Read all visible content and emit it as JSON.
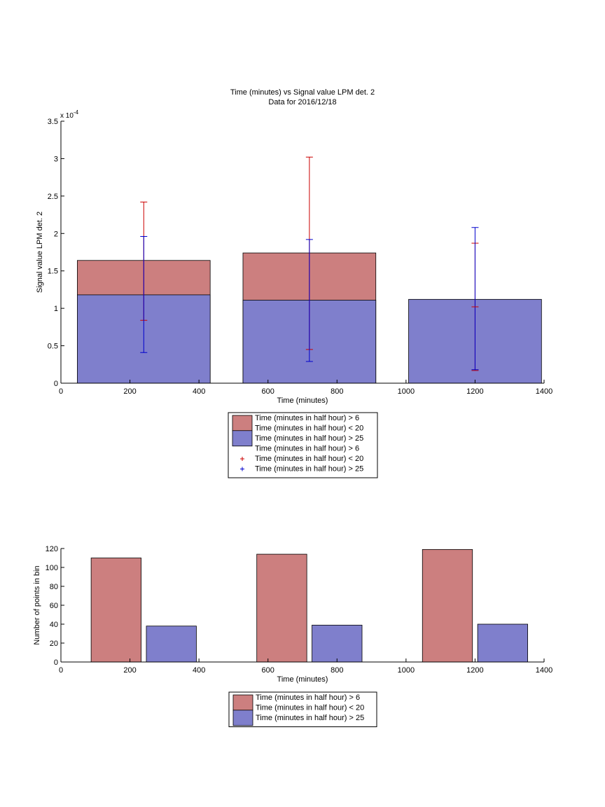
{
  "chart_data": [
    {
      "type": "bar",
      "title": "Time (minutes) vs Signal value LPM det. 2",
      "subtitle": "Data for 2016/12/18",
      "xlabel": "Time (minutes)",
      "ylabel": "Signal value LPM det. 2",
      "y_multiplier": "x 10",
      "y_exponent": "-4",
      "xlim": [
        0,
        1400
      ],
      "ylim": [
        0,
        3.5
      ],
      "xticks": [
        0,
        200,
        400,
        600,
        800,
        1000,
        1200,
        1400
      ],
      "yticks": [
        0,
        0.5,
        1,
        1.5,
        2,
        2.5,
        3,
        3.5
      ],
      "ytick_labels": [
        "0",
        "0.5",
        "1",
        "1.5",
        "2",
        "2.5",
        "3",
        "3.5"
      ],
      "bar_width": 385,
      "grid": false,
      "legend_position": "below",
      "bars": [
        {
          "x": 240,
          "red": 1.64,
          "blue": 1.18
        },
        {
          "x": 720,
          "red": 1.74,
          "blue": 1.11
        },
        {
          "x": 1200,
          "red": 0,
          "blue": 1.12
        }
      ],
      "errorbars": [
        {
          "series": "red",
          "x": 240,
          "low": 0.84,
          "high": 2.42
        },
        {
          "series": "red",
          "x": 720,
          "low": 0.45,
          "high": 3.02
        },
        {
          "series": "red",
          "x": 1200,
          "low": 0.17,
          "high": 1.87
        },
        {
          "series": "blue",
          "x": 240,
          "low": 0.41,
          "high": 1.96
        },
        {
          "series": "blue",
          "x": 720,
          "low": 0.29,
          "high": 1.92
        },
        {
          "series": "blue",
          "x": 1200,
          "low": 0.18,
          "high": 2.08
        }
      ],
      "red_mean_markers": [
        {
          "x": 1200,
          "y": 1.02
        }
      ],
      "legend": [
        {
          "kind": "patch",
          "color": "#cc7f7f",
          "label": "Time (minutes in half hour) > 6"
        },
        {
          "kind": "patch",
          "color": "#7f7fcc",
          "label": "Time (minutes in half hour) < 20"
        },
        {
          "kind": "text",
          "label": "Time (minutes in half hour) > 25"
        },
        {
          "kind": "text",
          "label": "Time (minutes in half hour) > 6"
        },
        {
          "kind": "marker",
          "color": "#cc0000",
          "label": "Time (minutes in half hour) < 20"
        },
        {
          "kind": "marker",
          "color": "#0000cc",
          "label": "Time (minutes in half hour) > 25"
        }
      ],
      "colors": {
        "red_bar": "#cc7f7f",
        "blue_bar": "#7f7fcc",
        "red_err": "#cc0000",
        "blue_err": "#0000cc"
      }
    },
    {
      "type": "bar",
      "xlabel": "Time (minutes)",
      "ylabel": "Number of points in bin",
      "xlim": [
        0,
        1400
      ],
      "ylim": [
        0,
        120
      ],
      "xticks": [
        0,
        200,
        400,
        600,
        800,
        1000,
        1200,
        1400
      ],
      "yticks": [
        0,
        20,
        40,
        60,
        80,
        100,
        120
      ],
      "bar_width": 145,
      "grid": false,
      "legend_position": "below",
      "bars": [
        {
          "series": "red",
          "x": 160,
          "value": 110
        },
        {
          "series": "blue",
          "x": 320,
          "value": 38
        },
        {
          "series": "red",
          "x": 640,
          "value": 114
        },
        {
          "series": "blue",
          "x": 800,
          "value": 39
        },
        {
          "series": "red",
          "x": 1120,
          "value": 119
        },
        {
          "series": "blue",
          "x": 1280,
          "value": 40
        }
      ],
      "legend": [
        {
          "kind": "patch",
          "color": "#cc7f7f",
          "label": "Time (minutes in half hour) > 6"
        },
        {
          "kind": "patch",
          "color": "#7f7fcc",
          "label": "Time (minutes in half hour) < 20"
        },
        {
          "kind": "text",
          "label": "Time (minutes in half hour) > 25"
        }
      ],
      "colors": {
        "red_bar": "#cc7f7f",
        "blue_bar": "#7f7fcc"
      }
    }
  ]
}
